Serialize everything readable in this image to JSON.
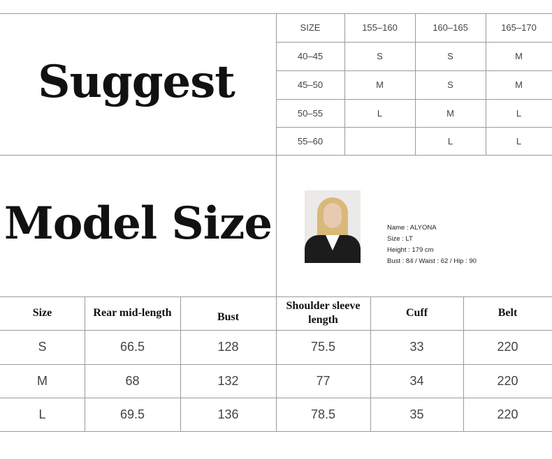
{
  "suggest": {
    "title": "Suggest",
    "headers": [
      "SIZE",
      "155–160",
      "160–165",
      "165–170"
    ],
    "rows": [
      [
        "40–45",
        "S",
        "S",
        "M"
      ],
      [
        "45–50",
        "M",
        "S",
        "M"
      ],
      [
        "50–55",
        "L",
        "M",
        "L"
      ],
      [
        "55–60",
        "",
        "L",
        "L"
      ]
    ]
  },
  "model": {
    "title": "Model Size",
    "name": "Name : ALYONA",
    "size": "Size : LT",
    "height": "Height : 179  cm",
    "measures": "Bust : 84 / Waist : 62 / Hip : 90"
  },
  "chart": {
    "headers": [
      "Size",
      "Rear mid-length",
      "Bust",
      "Shoulder sleeve length",
      "Cuff",
      "Belt"
    ],
    "rows": [
      [
        "S",
        "66.5",
        "128",
        "75.5",
        "33",
        "220"
      ],
      [
        "M",
        "68",
        "132",
        "77",
        "34",
        "220"
      ],
      [
        "L",
        "69.5",
        "136",
        "78.5",
        "35",
        "220"
      ]
    ]
  }
}
